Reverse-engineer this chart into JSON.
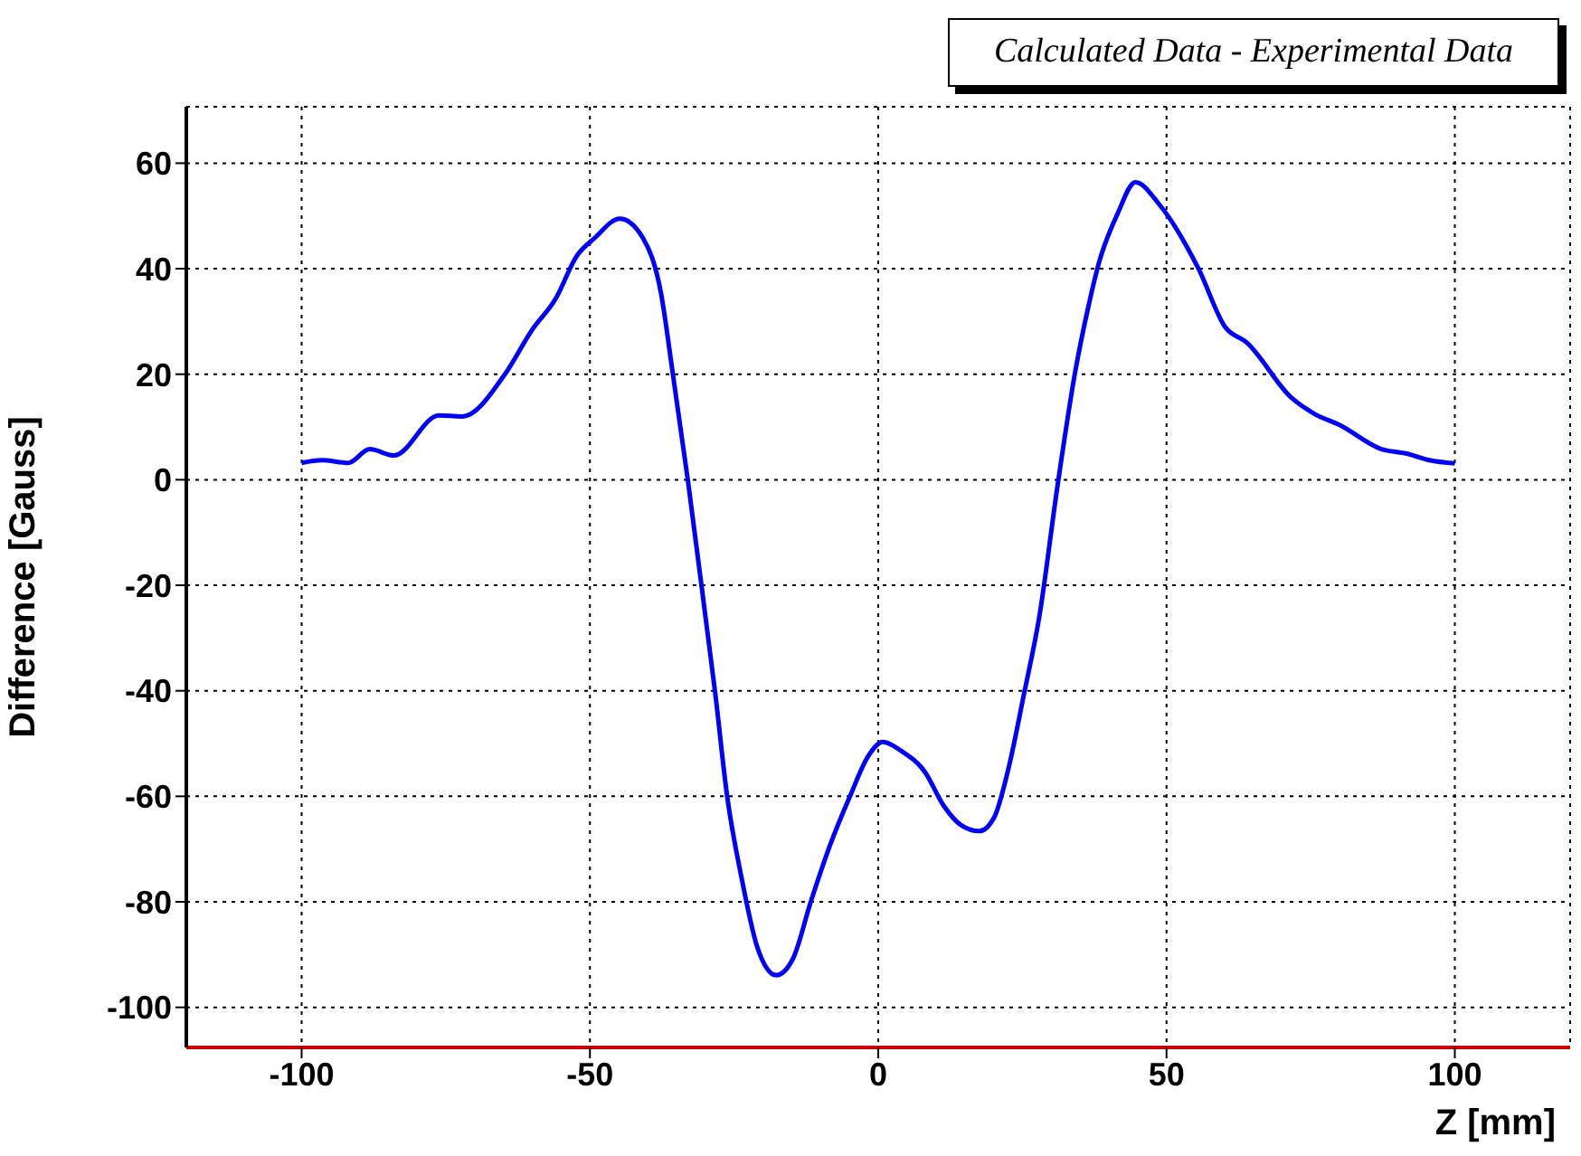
{
  "chart_data": {
    "type": "line",
    "title": "Calculated Data - Experimental Data",
    "xlabel": "Z [mm]",
    "ylabel": "Difference [Gauss]",
    "xlim": [
      -120,
      120
    ],
    "xticks": [
      -100,
      -50,
      0,
      50,
      100
    ],
    "ylim": [
      -107.6,
      70.7
    ],
    "yticks": [
      -100,
      -80,
      -60,
      -40,
      -20,
      0,
      20,
      40,
      60
    ],
    "grid": true,
    "marker": "none",
    "line_style": "solid",
    "series": [
      {
        "color": "#0000ff",
        "x": [
          -100,
          -96.5,
          -91.9,
          -88.2,
          -84,
          -76.2,
          -72.1,
          -64.8,
          -60.1,
          -55.9,
          -52.3,
          -49.2,
          -44.8,
          -40.8,
          -37.7,
          -35.6,
          -33,
          -29.4,
          -28.3,
          -26.2,
          -23.6,
          -21,
          -17.7,
          -14.8,
          -11.7,
          -8.5,
          -4.9,
          -1.8,
          0.8,
          4,
          8.1,
          11.3,
          14.4,
          17.5,
          20.1,
          22.7,
          25.3,
          27.9,
          31.1,
          34.2,
          36.3,
          38.3,
          41.5,
          44.6,
          48.8,
          55.5,
          60.2,
          63.9,
          71.7,
          75.8,
          80,
          87.3,
          91.5,
          95.6,
          100
        ],
        "values": [
          3.2,
          3.7,
          3.2,
          5.8,
          4.6,
          12.2,
          12,
          19.9,
          28.3,
          34.4,
          42.4,
          45.8,
          49.5,
          45.8,
          35.5,
          19.9,
          -0.2,
          -30.8,
          -40.2,
          -60,
          -76,
          -88.5,
          -93.9,
          -90.8,
          -80,
          -69.7,
          -60,
          -52.5,
          -49.7,
          -51.4,
          -55.4,
          -61.7,
          -65.5,
          -66.6,
          -64,
          -54.2,
          -40.5,
          -26.2,
          -1.1,
          20.7,
          32.1,
          41.2,
          50.4,
          56.4,
          52.1,
          40.1,
          28.9,
          26,
          15.5,
          12.4,
          10.4,
          5.8,
          5,
          3.7,
          3.1
        ]
      }
    ]
  }
}
